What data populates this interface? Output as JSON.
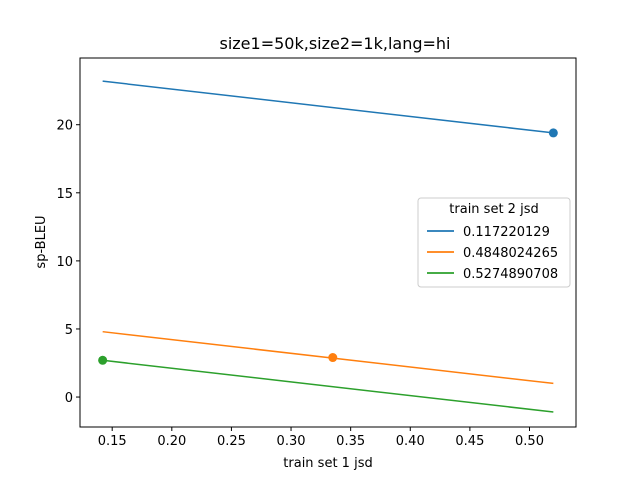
{
  "chart_data": {
    "type": "line",
    "title": "size1=50k,size2=1k,lang=hi",
    "xlabel": "train set 1 jsd",
    "ylabel": "sp-BLEU",
    "xlim": [
      0.123,
      0.539
    ],
    "ylim": [
      -2.2,
      24.9
    ],
    "xticks": [
      0.15,
      0.2,
      0.25,
      0.3,
      0.35,
      0.4,
      0.45,
      0.5
    ],
    "xtick_labels": [
      "0.15",
      "0.20",
      "0.25",
      "0.30",
      "0.35",
      "0.40",
      "0.45",
      "0.50"
    ],
    "yticks": [
      0,
      5,
      10,
      15,
      20
    ],
    "ytick_labels": [
      "0",
      "5",
      "10",
      "15",
      "20"
    ],
    "grid": false,
    "legend": {
      "title": "train set 2 jsd",
      "placement": "center-right"
    },
    "series": [
      {
        "name": "0.117220129",
        "color": "#1f77b4",
        "line": [
          [
            0.142,
            23.2
          ],
          [
            0.52,
            19.4
          ]
        ],
        "point": [
          0.52,
          19.4
        ]
      },
      {
        "name": "0.4848024265",
        "color": "#ff7f0e",
        "line": [
          [
            0.142,
            4.8
          ],
          [
            0.52,
            1.0
          ]
        ],
        "point": [
          0.335,
          2.9
        ]
      },
      {
        "name": "0.5274890708",
        "color": "#2ca02c",
        "line": [
          [
            0.142,
            2.7
          ],
          [
            0.52,
            -1.1
          ]
        ],
        "point": [
          0.142,
          2.7
        ]
      }
    ]
  }
}
